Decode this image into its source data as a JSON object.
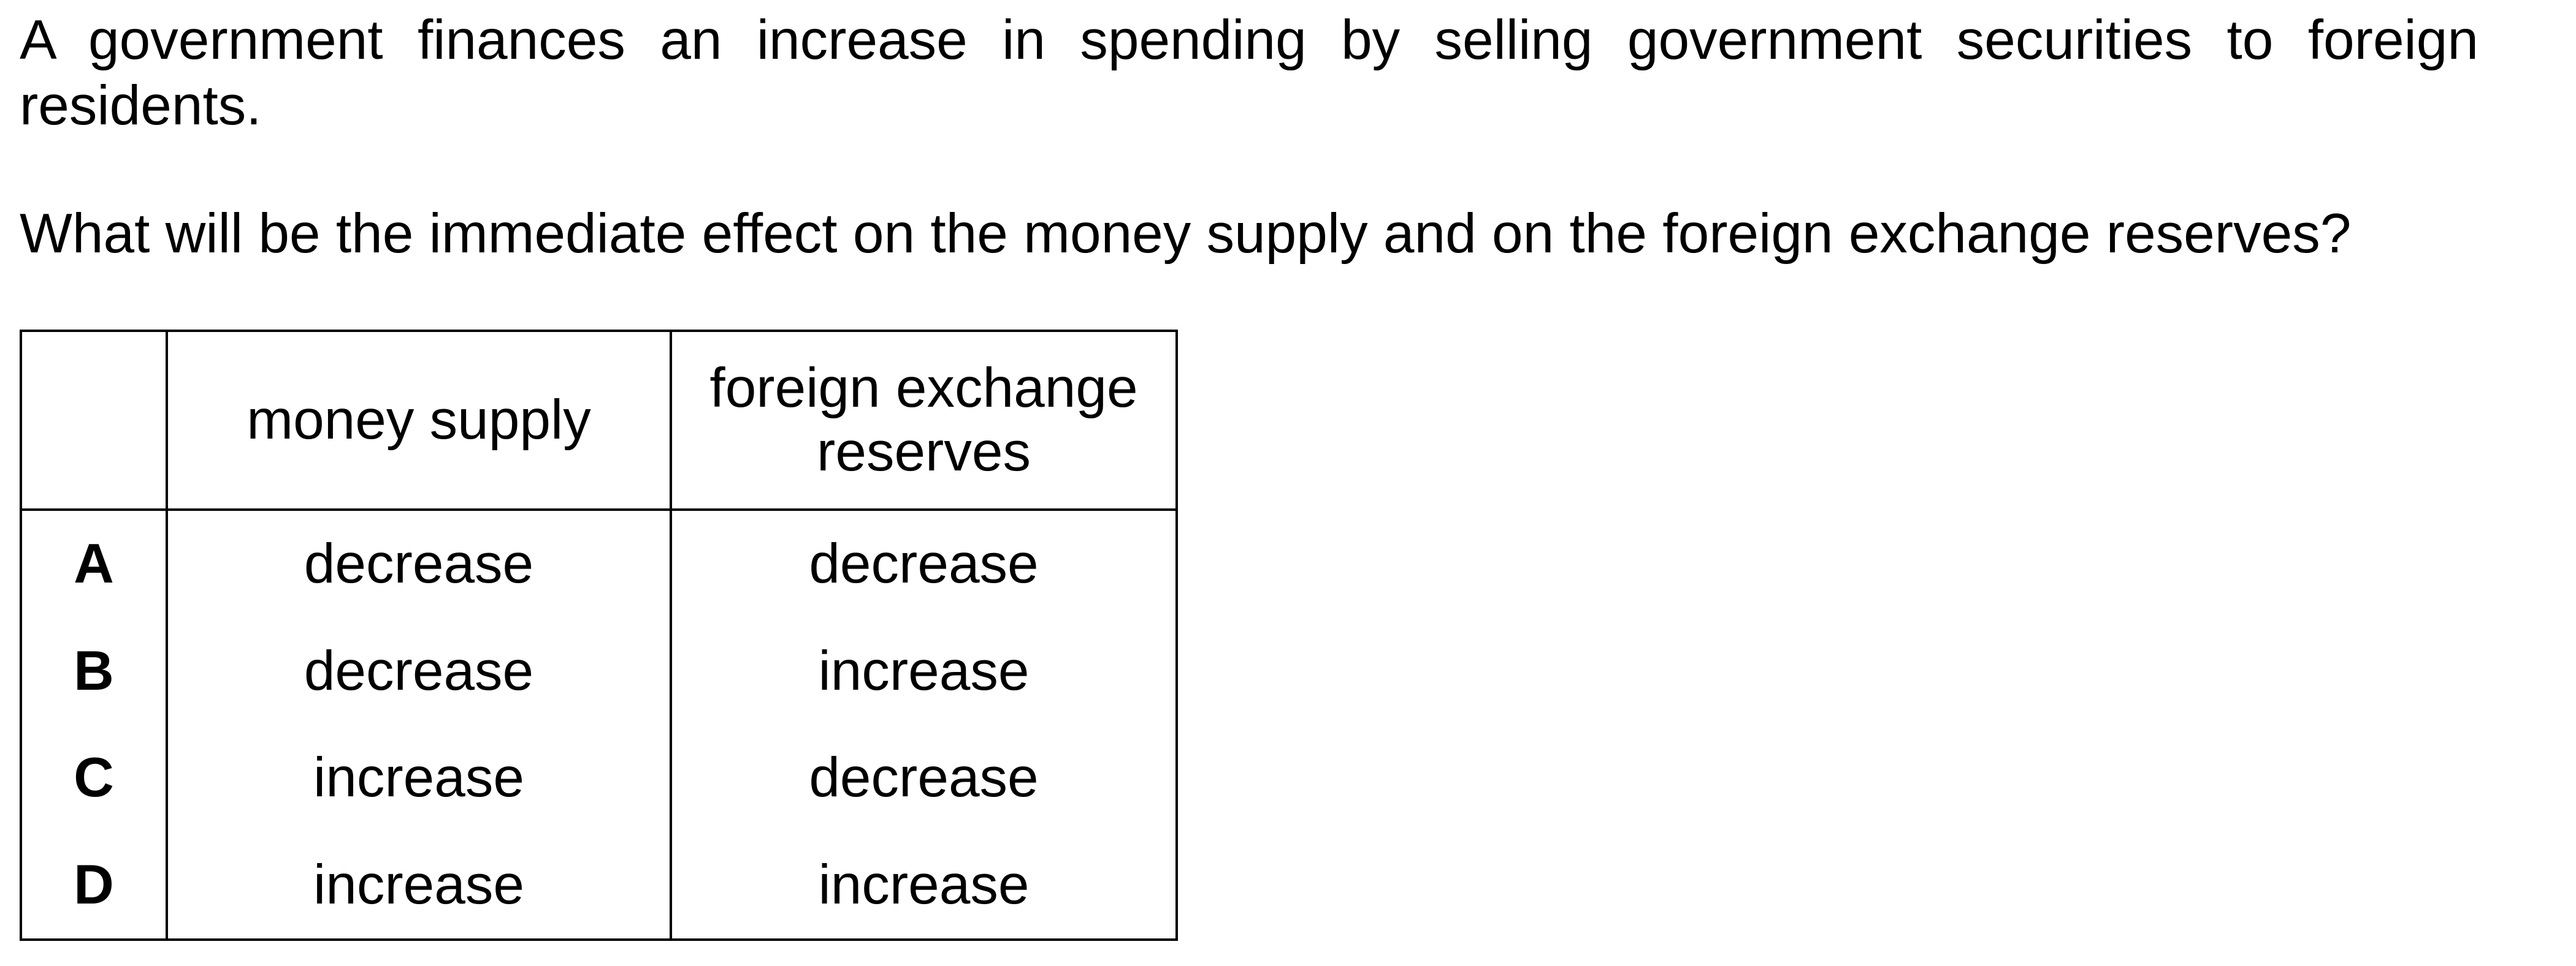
{
  "stem": "A government finances an increase in spending by selling government securities to foreign residents.",
  "question": "What will be the immediate effect on the money supply and on the foreign exchange reserves?",
  "table": {
    "headers": [
      "",
      "money supply",
      "foreign exchange reserves"
    ],
    "rows": [
      {
        "key": "A",
        "money_supply": "decrease",
        "reserves": "decrease"
      },
      {
        "key": "B",
        "money_supply": "decrease",
        "reserves": "increase"
      },
      {
        "key": "C",
        "money_supply": "increase",
        "reserves": "decrease"
      },
      {
        "key": "D",
        "money_supply": "increase",
        "reserves": "increase"
      }
    ]
  }
}
